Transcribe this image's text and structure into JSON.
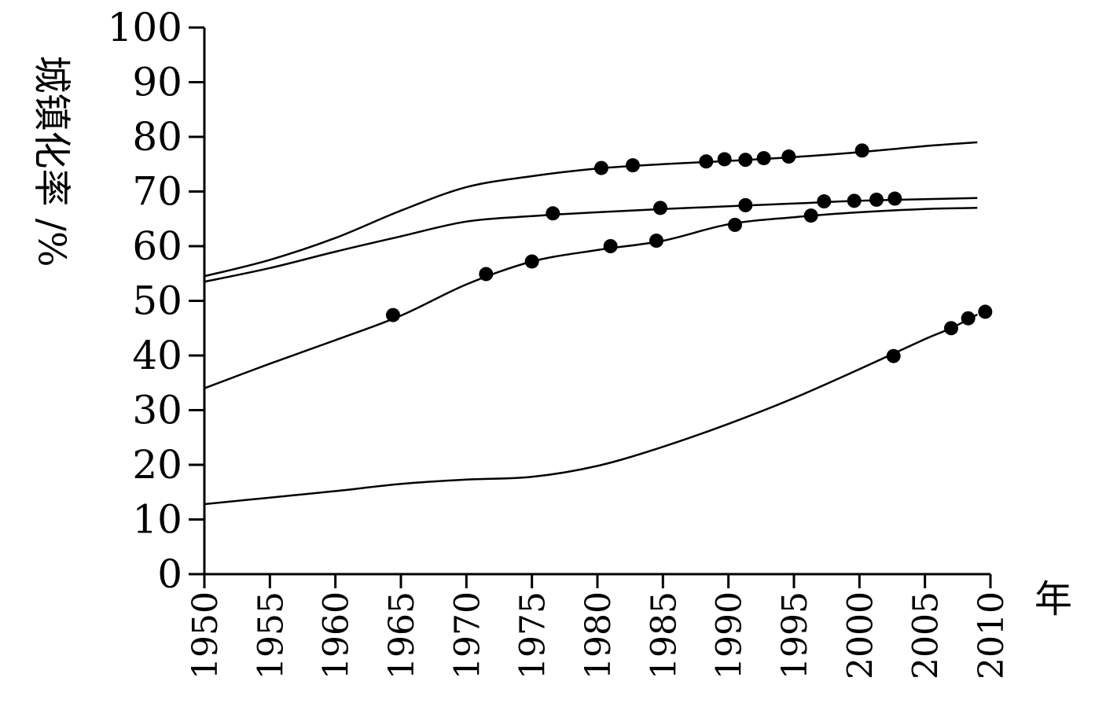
{
  "chart_data": {
    "type": "line",
    "ylabel": "城镇化率 /%",
    "xlabel": "年",
    "xlim": [
      1950,
      2010
    ],
    "ylim": [
      0,
      100
    ],
    "x_ticks": [
      "1950",
      "1955",
      "1960",
      "1965",
      "1970",
      "1975",
      "1980",
      "1985",
      "1990",
      "1995",
      "2000",
      "2005",
      "2010"
    ],
    "y_ticks": [
      "0",
      "10",
      "20",
      "30",
      "40",
      "50",
      "60",
      "70",
      "80",
      "90",
      "100"
    ],
    "grid": false,
    "series": [
      {
        "curve": [
          [
            1950,
            54.5
          ],
          [
            1955,
            57.5
          ],
          [
            1960,
            61.5
          ],
          [
            1965,
            66.5
          ],
          [
            1970,
            70.8
          ],
          [
            1975,
            72.8
          ],
          [
            1980,
            74.2
          ],
          [
            1985,
            75
          ],
          [
            1990,
            75.6
          ],
          [
            1995,
            76.3
          ],
          [
            2000,
            77.2
          ],
          [
            2005,
            78.3
          ],
          [
            2009,
            79
          ]
        ],
        "markers": [
          [
            1980.3,
            74.3
          ],
          [
            1982.7,
            74.8
          ],
          [
            1988.3,
            75.5
          ],
          [
            1989.7,
            75.9
          ],
          [
            1991.3,
            75.8
          ],
          [
            1992.7,
            76.1
          ],
          [
            1994.6,
            76.4
          ],
          [
            2000.2,
            77.5
          ]
        ]
      },
      {
        "curve": [
          [
            1950,
            53.5
          ],
          [
            1955,
            56
          ],
          [
            1960,
            59
          ],
          [
            1965,
            61.8
          ],
          [
            1970,
            64.5
          ],
          [
            1975,
            65.5
          ],
          [
            1980,
            66.2
          ],
          [
            1985,
            66.8
          ],
          [
            1990,
            67.3
          ],
          [
            1995,
            67.8
          ],
          [
            2000,
            68.3
          ],
          [
            2005,
            68.6
          ],
          [
            2009,
            68.8
          ]
        ],
        "markers": [
          [
            1976.6,
            66
          ],
          [
            1984.8,
            67
          ],
          [
            1991.3,
            67.5
          ],
          [
            1997.3,
            68.2
          ],
          [
            1999.6,
            68.3
          ],
          [
            2001.3,
            68.5
          ],
          [
            2002.7,
            68.7
          ]
        ]
      },
      {
        "curve": [
          [
            1950,
            34
          ],
          [
            1955,
            38.5
          ],
          [
            1960,
            42.8
          ],
          [
            1965,
            47.3
          ],
          [
            1970,
            53
          ],
          [
            1975,
            57.2
          ],
          [
            1980,
            59.3
          ],
          [
            1985,
            61
          ],
          [
            1990,
            64
          ],
          [
            1995,
            65.3
          ],
          [
            2000,
            66.2
          ],
          [
            2005,
            66.8
          ],
          [
            2009,
            67
          ]
        ],
        "markers": [
          [
            1964.4,
            47.4
          ],
          [
            1971.5,
            54.9
          ],
          [
            1975,
            57.2
          ],
          [
            1981,
            60
          ],
          [
            1984.5,
            61
          ],
          [
            1990.5,
            63.9
          ],
          [
            1996.3,
            65.6
          ]
        ]
      },
      {
        "curve": [
          [
            1950,
            12.8
          ],
          [
            1955,
            14
          ],
          [
            1960,
            15.2
          ],
          [
            1965,
            16.5
          ],
          [
            1970,
            17.3
          ],
          [
            1975,
            17.8
          ],
          [
            1980,
            19.8
          ],
          [
            1985,
            23.3
          ],
          [
            1990,
            27.5
          ],
          [
            1995,
            32.2
          ],
          [
            2000,
            37.5
          ],
          [
            2005,
            43
          ],
          [
            2007,
            45
          ],
          [
            2009,
            47.5
          ]
        ],
        "markers": [
          [
            2002.6,
            39.9
          ],
          [
            2007,
            45
          ],
          [
            2008.3,
            46.8
          ],
          [
            2009.6,
            48
          ]
        ]
      }
    ]
  }
}
